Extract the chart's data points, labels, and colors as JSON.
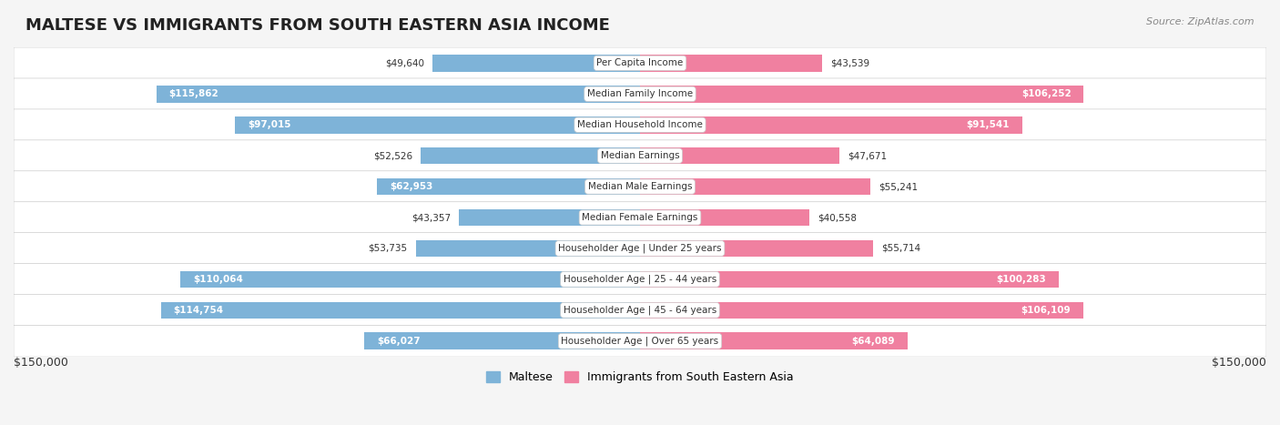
{
  "title": "MALTESE VS IMMIGRANTS FROM SOUTH EASTERN ASIA INCOME",
  "source": "Source: ZipAtlas.com",
  "categories": [
    "Per Capita Income",
    "Median Family Income",
    "Median Household Income",
    "Median Earnings",
    "Median Male Earnings",
    "Median Female Earnings",
    "Householder Age | Under 25 years",
    "Householder Age | 25 - 44 years",
    "Householder Age | 45 - 64 years",
    "Householder Age | Over 65 years"
  ],
  "maltese_values": [
    49640,
    115862,
    97015,
    52526,
    62953,
    43357,
    53735,
    110064,
    114754,
    66027
  ],
  "immigrant_values": [
    43539,
    106252,
    91541,
    47671,
    55241,
    40558,
    55714,
    100283,
    106109,
    64089
  ],
  "maltese_color": "#7EB3D8",
  "maltese_color_dark": "#6495C8",
  "immigrant_color": "#F080A0",
  "immigrant_color_dark": "#E06080",
  "bg_color": "#f5f5f5",
  "row_bg_color": "#ececec",
  "max_value": 150000,
  "legend_maltese": "Maltese",
  "legend_immigrant": "Immigrants from South Eastern Asia",
  "xlabel_left": "$150,000",
  "xlabel_right": "$150,000"
}
